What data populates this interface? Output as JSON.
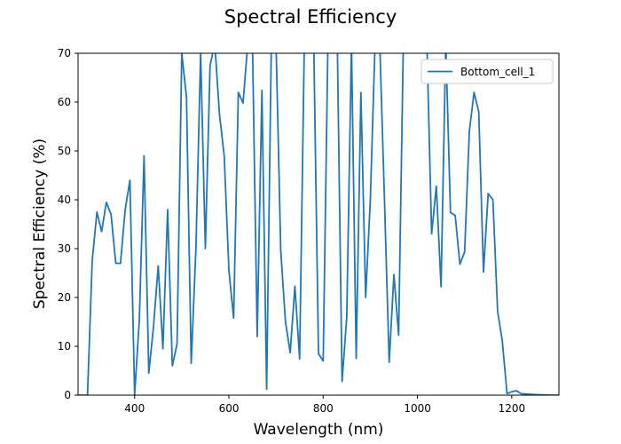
{
  "chart_data": {
    "type": "line",
    "title": "Spectral Efficiency",
    "xlabel": "Wavelength (nm)",
    "ylabel": "Spectral Efficiency (%)",
    "xlim": [
      280,
      1300
    ],
    "ylim": [
      0,
      70
    ],
    "xticks": [
      400,
      600,
      800,
      1000,
      1200
    ],
    "yticks": [
      0,
      10,
      20,
      30,
      40,
      50,
      60,
      70
    ],
    "grid": false,
    "legend_position": "top-right",
    "line_color": "#1f77b4",
    "series": [
      {
        "name": "Bottom_cell_1",
        "x": [
          280,
          290,
          300,
          310,
          320,
          330,
          340,
          350,
          360,
          370,
          380,
          390,
          400,
          410,
          420,
          430,
          440,
          450,
          460,
          470,
          480,
          490,
          500,
          510,
          520,
          530,
          540,
          550,
          560,
          570,
          580,
          590,
          600,
          610,
          620,
          630,
          640,
          650,
          660,
          670,
          680,
          690,
          700,
          710,
          720,
          730,
          740,
          750,
          760,
          770,
          780,
          790,
          800,
          810,
          820,
          830,
          840,
          850,
          860,
          870,
          880,
          890,
          900,
          910,
          920,
          930,
          940,
          950,
          960,
          970,
          980,
          990,
          1000,
          1010,
          1020,
          1030,
          1040,
          1050,
          1060,
          1070,
          1080,
          1090,
          1100,
          1110,
          1120,
          1130,
          1140,
          1150,
          1160,
          1170,
          1180,
          1190,
          1200,
          1210,
          1220,
          1250,
          1280,
          1300
        ],
        "values": [
          0,
          0,
          0,
          27.5,
          37.5,
          33.5,
          39.5,
          37,
          27,
          27,
          38,
          44,
          0,
          15.5,
          49,
          4.5,
          14,
          26.5,
          9.5,
          38,
          6,
          10.5,
          70,
          61,
          6.5,
          30,
          70,
          30,
          67.5,
          72,
          57.5,
          49,
          25.5,
          15.8,
          62,
          59.8,
          72,
          72,
          12,
          62.4,
          1.2,
          72,
          72,
          29.5,
          15,
          8.7,
          22.3,
          7.4,
          72,
          72,
          72,
          8.5,
          7,
          72,
          72,
          72,
          2.8,
          16,
          72,
          7.5,
          62,
          20,
          40,
          72,
          72,
          40,
          6.7,
          24.7,
          12.3,
          72,
          72,
          72,
          72,
          72,
          72,
          33,
          42.8,
          22.2,
          72,
          37.4,
          36.8,
          26.8,
          29.3,
          54,
          62,
          58,
          25.2,
          41.3,
          40,
          17.2,
          11,
          0.3,
          0.7,
          0.9,
          0.3,
          0.1,
          0,
          0
        ]
      }
    ]
  }
}
